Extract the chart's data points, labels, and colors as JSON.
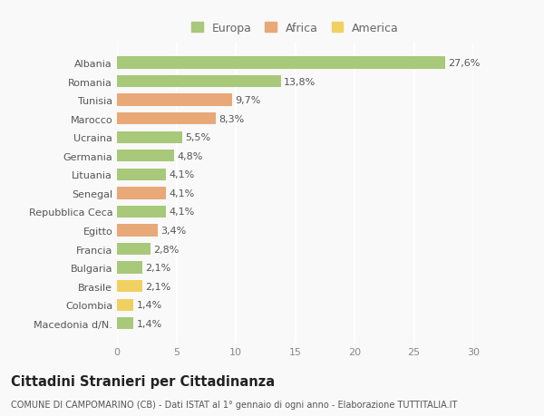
{
  "categories": [
    "Albania",
    "Romania",
    "Tunisia",
    "Marocco",
    "Ucraina",
    "Germania",
    "Lituania",
    "Senegal",
    "Repubblica Ceca",
    "Egitto",
    "Francia",
    "Bulgaria",
    "Brasile",
    "Colombia",
    "Macedonia d/N."
  ],
  "values": [
    27.6,
    13.8,
    9.7,
    8.3,
    5.5,
    4.8,
    4.1,
    4.1,
    4.1,
    3.4,
    2.8,
    2.1,
    2.1,
    1.4,
    1.4
  ],
  "labels": [
    "27,6%",
    "13,8%",
    "9,7%",
    "8,3%",
    "5,5%",
    "4,8%",
    "4,1%",
    "4,1%",
    "4,1%",
    "3,4%",
    "2,8%",
    "2,1%",
    "2,1%",
    "1,4%",
    "1,4%"
  ],
  "continents": [
    "Europa",
    "Europa",
    "Africa",
    "Africa",
    "Europa",
    "Europa",
    "Europa",
    "Africa",
    "Europa",
    "Africa",
    "Europa",
    "Europa",
    "America",
    "America",
    "Europa"
  ],
  "colors": {
    "Europa": "#a8c87a",
    "Africa": "#e8a878",
    "America": "#f0d060"
  },
  "xlim": [
    0,
    30
  ],
  "xticks": [
    0,
    5,
    10,
    15,
    20,
    25,
    30
  ],
  "title": "Cittadini Stranieri per Cittadinanza",
  "subtitle": "COMUNE DI CAMPOMARINO (CB) - Dati ISTAT al 1° gennaio di ogni anno - Elaborazione TUTTITALIA.IT",
  "background_color": "#f9f9f9",
  "grid_color": "#ffffff",
  "bar_height": 0.65,
  "label_fontsize": 8.0,
  "ytick_fontsize": 8.0,
  "xtick_fontsize": 8.0,
  "title_fontsize": 10.5,
  "subtitle_fontsize": 7.0
}
